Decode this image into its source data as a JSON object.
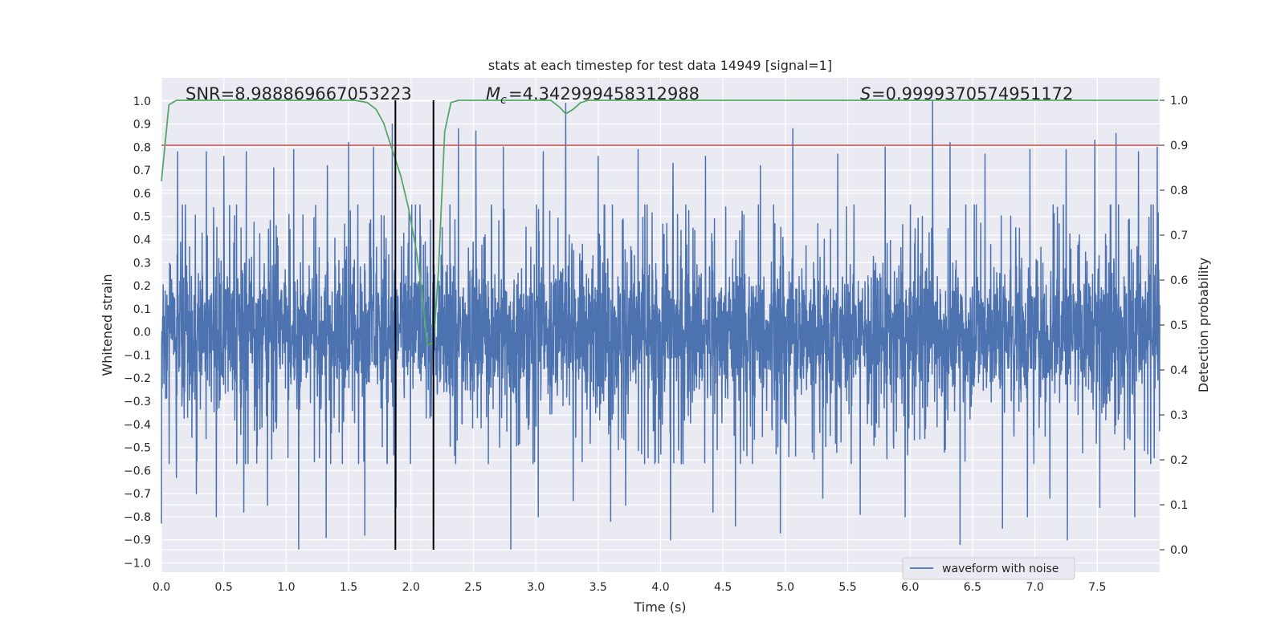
{
  "chart_data": {
    "type": "line",
    "title": "stats at each timestep for test data 14949 [signal=1]",
    "xlabel": "Time (s)",
    "ylabel_left": "Whitened strain",
    "ylabel_right": "Detection probability",
    "xlim": [
      0.0,
      8.0
    ],
    "ylim_left": [
      -1.04,
      1.1
    ],
    "ylim_right": [
      -0.05,
      1.05
    ],
    "x_ticks": [
      "0.0",
      "0.5",
      "1.0",
      "1.5",
      "2.0",
      "2.5",
      "3.0",
      "3.5",
      "4.0",
      "4.5",
      "5.0",
      "5.5",
      "6.0",
      "6.5",
      "7.0",
      "7.5"
    ],
    "x_tick_values": [
      0.0,
      0.5,
      1.0,
      1.5,
      2.0,
      2.5,
      3.0,
      3.5,
      4.0,
      4.5,
      5.0,
      5.5,
      6.0,
      6.5,
      7.0,
      7.5
    ],
    "y_left_ticks": [
      "1.0",
      "0.9",
      "0.8",
      "0.7",
      "0.6",
      "0.5",
      "0.4",
      "0.3",
      "0.2",
      "0.1",
      "0.0",
      "−0.1",
      "−0.2",
      "−0.3",
      "−0.4",
      "−0.5",
      "−0.6",
      "−0.7",
      "−0.8",
      "−0.9",
      "−1.0"
    ],
    "y_left_tick_values": [
      1.0,
      0.9,
      0.8,
      0.7,
      0.6,
      0.5,
      0.4,
      0.3,
      0.2,
      0.1,
      0.0,
      -0.1,
      -0.2,
      -0.3,
      -0.4,
      -0.5,
      -0.6,
      -0.7,
      -0.8,
      -0.9,
      -1.0
    ],
    "y_right_ticks": [
      "1.0",
      "0.9",
      "0.8",
      "0.7",
      "0.6",
      "0.5",
      "0.4",
      "0.3",
      "0.2",
      "0.1",
      "0.0"
    ],
    "y_right_tick_values": [
      1.0,
      0.9,
      0.8,
      0.7,
      0.6,
      0.5,
      0.4,
      0.3,
      0.2,
      0.1,
      0.0
    ],
    "annotations": {
      "snr": "SNR=8.988869667053223",
      "mc": "=4.342999458312988",
      "s": "=0.9999370574951172"
    },
    "legend": {
      "label": "waveform with noise",
      "placement": "lower-center-right"
    },
    "threshold": {
      "y": 0.9,
      "axis": "right",
      "color": "#c44e52"
    },
    "vertical_markers": [
      1.875,
      2.18
    ],
    "waveform": {
      "name": "waveform with noise",
      "color": "#4c72b0",
      "dt": 0.002,
      "t_end": 8.0,
      "typical_upper": 0.4,
      "typical_lower": -0.45,
      "peaks_up": [
        [
          0.0,
          0.62
        ],
        [
          0.13,
          0.78
        ],
        [
          0.36,
          0.78
        ],
        [
          0.5,
          0.76
        ],
        [
          0.68,
          0.78
        ],
        [
          0.9,
          0.71
        ],
        [
          1.06,
          0.79
        ],
        [
          1.33,
          0.72
        ],
        [
          1.5,
          0.82
        ],
        [
          1.7,
          0.8
        ],
        [
          1.85,
          0.9
        ],
        [
          2.38,
          0.88
        ],
        [
          2.52,
          0.87
        ],
        [
          2.74,
          0.8
        ],
        [
          3.06,
          0.78
        ],
        [
          3.24,
          0.99
        ],
        [
          3.5,
          0.76
        ],
        [
          3.82,
          0.79
        ],
        [
          4.1,
          0.73
        ],
        [
          4.36,
          0.76
        ],
        [
          4.6,
          0.75
        ],
        [
          4.8,
          0.72
        ],
        [
          5.06,
          0.88
        ],
        [
          5.42,
          0.77
        ],
        [
          5.8,
          0.8
        ],
        [
          5.96,
          0.84
        ],
        [
          6.18,
          1.0
        ],
        [
          6.32,
          0.82
        ],
        [
          6.6,
          0.77
        ],
        [
          6.96,
          0.79
        ],
        [
          7.25,
          0.79
        ],
        [
          7.48,
          0.83
        ],
        [
          7.65,
          0.86
        ],
        [
          7.83,
          0.78
        ],
        [
          7.98,
          0.8
        ]
      ],
      "peaks_down": [
        [
          0.0,
          -0.83
        ],
        [
          0.12,
          -0.63
        ],
        [
          0.28,
          -0.7
        ],
        [
          0.44,
          -0.8
        ],
        [
          0.66,
          -0.78
        ],
        [
          0.85,
          -0.75
        ],
        [
          1.1,
          -0.94
        ],
        [
          1.32,
          -0.89
        ],
        [
          1.63,
          -0.88
        ],
        [
          1.88,
          -0.76
        ],
        [
          2.18,
          -0.92
        ],
        [
          2.8,
          -0.94
        ],
        [
          3.02,
          -0.8
        ],
        [
          3.3,
          -0.73
        ],
        [
          3.6,
          -0.82
        ],
        [
          3.72,
          -0.75
        ],
        [
          4.08,
          -0.9
        ],
        [
          4.42,
          -0.78
        ],
        [
          4.6,
          -0.84
        ],
        [
          4.96,
          -0.87
        ],
        [
          5.3,
          -0.72
        ],
        [
          5.6,
          -0.79
        ],
        [
          5.96,
          -0.8
        ],
        [
          6.4,
          -0.92
        ],
        [
          6.74,
          -0.85
        ],
        [
          6.94,
          -0.8
        ],
        [
          7.12,
          -0.72
        ],
        [
          7.26,
          -0.9
        ],
        [
          7.52,
          -0.76
        ],
        [
          7.8,
          -0.8
        ]
      ]
    },
    "detection_probability": {
      "name": "detection probability",
      "color": "#55a868",
      "points": [
        [
          0.0,
          0.82
        ],
        [
          0.06,
          0.99
        ],
        [
          0.12,
          1.0
        ],
        [
          1.55,
          1.0
        ],
        [
          1.65,
          0.995
        ],
        [
          1.72,
          0.98
        ],
        [
          1.78,
          0.95
        ],
        [
          1.85,
          0.89
        ],
        [
          1.92,
          0.83
        ],
        [
          1.98,
          0.76
        ],
        [
          2.04,
          0.67
        ],
        [
          2.09,
          0.57
        ],
        [
          2.13,
          0.455
        ],
        [
          2.18,
          0.46
        ],
        [
          2.22,
          0.62
        ],
        [
          2.27,
          0.93
        ],
        [
          2.32,
          0.995
        ],
        [
          2.38,
          1.0
        ],
        [
          3.12,
          1.0
        ],
        [
          3.19,
          0.985
        ],
        [
          3.24,
          0.97
        ],
        [
          3.3,
          0.98
        ],
        [
          3.36,
          0.995
        ],
        [
          3.42,
          1.0
        ],
        [
          7.99,
          1.0
        ]
      ]
    }
  }
}
